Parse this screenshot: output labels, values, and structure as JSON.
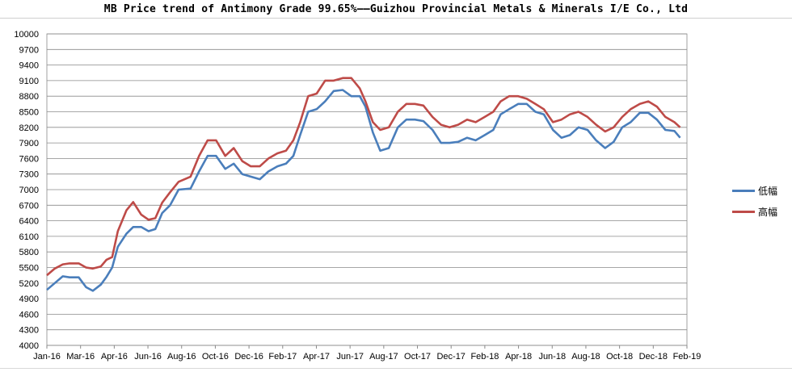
{
  "chart_data": {
    "type": "line",
    "title": "MB Price trend of Antimony Grade 99.65%——Guizhou Provincial Metals & Minerals I/E Co., Ltd",
    "xlabel": "",
    "ylabel": "",
    "ylim": [
      4000,
      10000
    ],
    "yticks": [
      4000,
      4300,
      4600,
      4900,
      5200,
      5500,
      5800,
      6100,
      6400,
      6700,
      7000,
      7300,
      7600,
      7900,
      8200,
      8500,
      8800,
      9100,
      9400,
      9700,
      10000
    ],
    "xlim": [
      "2016-01",
      "2019-02"
    ],
    "x_tick_labels": [
      "Jan-16",
      "Mar-16",
      "Apr-16",
      "Jun-16",
      "Aug-16",
      "Oct-16",
      "Dec-16",
      "Feb-17",
      "Apr-17",
      "Jun-17",
      "Aug-17",
      "Oct-17",
      "Dec-17",
      "Feb-18",
      "Apr-18",
      "Jun-18",
      "Aug-18",
      "Oct-18",
      "Dec-18",
      "Feb-19"
    ],
    "grid": true,
    "legend_position": "right",
    "series": [
      {
        "name": "低幅",
        "color": "#4a7ebb",
        "points": [
          [
            "2016-01-01",
            5070
          ],
          [
            "2016-01-15",
            5200
          ],
          [
            "2016-01-29",
            5330
          ],
          [
            "2016-02-10",
            5310
          ],
          [
            "2016-02-26",
            5310
          ],
          [
            "2016-03-10",
            5120
          ],
          [
            "2016-03-22",
            5050
          ],
          [
            "2016-04-05",
            5170
          ],
          [
            "2016-04-15",
            5320
          ],
          [
            "2016-04-25",
            5500
          ],
          [
            "2016-05-05",
            5900
          ],
          [
            "2016-05-20",
            6150
          ],
          [
            "2016-06-01",
            6280
          ],
          [
            "2016-06-15",
            6280
          ],
          [
            "2016-06-28",
            6200
          ],
          [
            "2016-07-10",
            6240
          ],
          [
            "2016-07-22",
            6550
          ],
          [
            "2016-08-05",
            6700
          ],
          [
            "2016-08-20",
            7000
          ],
          [
            "2016-09-10",
            7020
          ],
          [
            "2016-09-25",
            7350
          ],
          [
            "2016-10-10",
            7650
          ],
          [
            "2016-10-25",
            7650
          ],
          [
            "2016-11-10",
            7400
          ],
          [
            "2016-11-25",
            7500
          ],
          [
            "2016-12-10",
            7300
          ],
          [
            "2016-12-25",
            7250
          ],
          [
            "2017-01-10",
            7200
          ],
          [
            "2017-01-25",
            7350
          ],
          [
            "2017-02-10",
            7450
          ],
          [
            "2017-02-25",
            7500
          ],
          [
            "2017-03-10",
            7650
          ],
          [
            "2017-03-22",
            8050
          ],
          [
            "2017-04-05",
            8500
          ],
          [
            "2017-04-20",
            8550
          ],
          [
            "2017-05-05",
            8700
          ],
          [
            "2017-05-20",
            8900
          ],
          [
            "2017-06-05",
            8920
          ],
          [
            "2017-06-20",
            8800
          ],
          [
            "2017-07-05",
            8800
          ],
          [
            "2017-07-15",
            8600
          ],
          [
            "2017-07-28",
            8100
          ],
          [
            "2017-08-10",
            7750
          ],
          [
            "2017-08-25",
            7800
          ],
          [
            "2017-09-10",
            8200
          ],
          [
            "2017-09-25",
            8350
          ],
          [
            "2017-10-10",
            8350
          ],
          [
            "2017-10-25",
            8320
          ],
          [
            "2017-11-10",
            8150
          ],
          [
            "2017-11-25",
            7900
          ],
          [
            "2017-12-10",
            7900
          ],
          [
            "2017-12-25",
            7920
          ],
          [
            "2018-01-10",
            8000
          ],
          [
            "2018-01-25",
            7950
          ],
          [
            "2018-02-10",
            8050
          ],
          [
            "2018-02-25",
            8150
          ],
          [
            "2018-03-10",
            8450
          ],
          [
            "2018-03-25",
            8550
          ],
          [
            "2018-04-10",
            8650
          ],
          [
            "2018-04-25",
            8650
          ],
          [
            "2018-05-10",
            8500
          ],
          [
            "2018-05-25",
            8450
          ],
          [
            "2018-06-10",
            8150
          ],
          [
            "2018-06-25",
            8000
          ],
          [
            "2018-07-10",
            8050
          ],
          [
            "2018-07-25",
            8200
          ],
          [
            "2018-08-10",
            8150
          ],
          [
            "2018-08-25",
            7950
          ],
          [
            "2018-09-10",
            7800
          ],
          [
            "2018-09-25",
            7920
          ],
          [
            "2018-10-10",
            8200
          ],
          [
            "2018-10-25",
            8300
          ],
          [
            "2018-11-10",
            8480
          ],
          [
            "2018-11-25",
            8480
          ],
          [
            "2018-12-10",
            8350
          ],
          [
            "2018-12-25",
            8150
          ],
          [
            "2019-01-10",
            8130
          ],
          [
            "2019-01-20",
            8000
          ]
        ]
      },
      {
        "name": "高幅",
        "color": "#be4b48",
        "points": [
          [
            "2016-01-01",
            5350
          ],
          [
            "2016-01-15",
            5480
          ],
          [
            "2016-01-29",
            5560
          ],
          [
            "2016-02-10",
            5580
          ],
          [
            "2016-02-26",
            5580
          ],
          [
            "2016-03-10",
            5500
          ],
          [
            "2016-03-22",
            5480
          ],
          [
            "2016-04-05",
            5520
          ],
          [
            "2016-04-15",
            5650
          ],
          [
            "2016-04-25",
            5700
          ],
          [
            "2016-05-05",
            6200
          ],
          [
            "2016-05-20",
            6600
          ],
          [
            "2016-06-01",
            6760
          ],
          [
            "2016-06-15",
            6520
          ],
          [
            "2016-06-28",
            6420
          ],
          [
            "2016-07-10",
            6450
          ],
          [
            "2016-07-22",
            6750
          ],
          [
            "2016-08-05",
            6950
          ],
          [
            "2016-08-20",
            7150
          ],
          [
            "2016-09-10",
            7250
          ],
          [
            "2016-09-25",
            7650
          ],
          [
            "2016-10-10",
            7950
          ],
          [
            "2016-10-25",
            7950
          ],
          [
            "2016-11-10",
            7650
          ],
          [
            "2016-11-25",
            7800
          ],
          [
            "2016-12-10",
            7550
          ],
          [
            "2016-12-25",
            7450
          ],
          [
            "2017-01-10",
            7450
          ],
          [
            "2017-01-25",
            7600
          ],
          [
            "2017-02-10",
            7700
          ],
          [
            "2017-02-25",
            7750
          ],
          [
            "2017-03-10",
            7950
          ],
          [
            "2017-03-22",
            8300
          ],
          [
            "2017-04-05",
            8800
          ],
          [
            "2017-04-20",
            8850
          ],
          [
            "2017-05-05",
            9100
          ],
          [
            "2017-05-20",
            9100
          ],
          [
            "2017-06-05",
            9150
          ],
          [
            "2017-06-20",
            9150
          ],
          [
            "2017-07-05",
            8950
          ],
          [
            "2017-07-15",
            8700
          ],
          [
            "2017-07-28",
            8300
          ],
          [
            "2017-08-10",
            8150
          ],
          [
            "2017-08-25",
            8200
          ],
          [
            "2017-09-10",
            8500
          ],
          [
            "2017-09-25",
            8650
          ],
          [
            "2017-10-10",
            8650
          ],
          [
            "2017-10-25",
            8620
          ],
          [
            "2017-11-10",
            8400
          ],
          [
            "2017-11-25",
            8250
          ],
          [
            "2017-12-10",
            8200
          ],
          [
            "2017-12-25",
            8250
          ],
          [
            "2018-01-10",
            8350
          ],
          [
            "2018-01-25",
            8300
          ],
          [
            "2018-02-10",
            8400
          ],
          [
            "2018-02-25",
            8500
          ],
          [
            "2018-03-10",
            8700
          ],
          [
            "2018-03-25",
            8800
          ],
          [
            "2018-04-10",
            8800
          ],
          [
            "2018-04-25",
            8750
          ],
          [
            "2018-05-10",
            8650
          ],
          [
            "2018-05-25",
            8550
          ],
          [
            "2018-06-10",
            8300
          ],
          [
            "2018-06-25",
            8350
          ],
          [
            "2018-07-10",
            8450
          ],
          [
            "2018-07-25",
            8500
          ],
          [
            "2018-08-10",
            8400
          ],
          [
            "2018-08-25",
            8250
          ],
          [
            "2018-09-10",
            8120
          ],
          [
            "2018-09-25",
            8200
          ],
          [
            "2018-10-10",
            8400
          ],
          [
            "2018-10-25",
            8550
          ],
          [
            "2018-11-10",
            8650
          ],
          [
            "2018-11-25",
            8700
          ],
          [
            "2018-12-10",
            8600
          ],
          [
            "2018-12-25",
            8400
          ],
          [
            "2019-01-10",
            8300
          ],
          [
            "2019-01-20",
            8200
          ]
        ]
      }
    ]
  }
}
